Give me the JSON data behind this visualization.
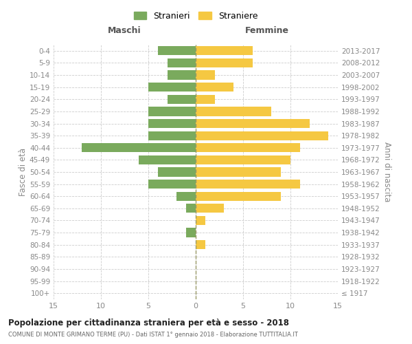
{
  "age_groups": [
    "100+",
    "95-99",
    "90-94",
    "85-89",
    "80-84",
    "75-79",
    "70-74",
    "65-69",
    "60-64",
    "55-59",
    "50-54",
    "45-49",
    "40-44",
    "35-39",
    "30-34",
    "25-29",
    "20-24",
    "15-19",
    "10-14",
    "5-9",
    "0-4"
  ],
  "birth_years": [
    "≤ 1917",
    "1918-1922",
    "1923-1927",
    "1928-1932",
    "1933-1937",
    "1938-1942",
    "1943-1947",
    "1948-1952",
    "1953-1957",
    "1958-1962",
    "1963-1967",
    "1968-1972",
    "1973-1977",
    "1978-1982",
    "1983-1987",
    "1988-1992",
    "1993-1997",
    "1998-2002",
    "2003-2007",
    "2008-2012",
    "2013-2017"
  ],
  "males": [
    0,
    0,
    0,
    0,
    0,
    1,
    0,
    1,
    2,
    5,
    4,
    6,
    12,
    5,
    5,
    5,
    3,
    5,
    3,
    3,
    4
  ],
  "females": [
    0,
    0,
    0,
    0,
    1,
    0,
    1,
    3,
    9,
    11,
    9,
    10,
    11,
    14,
    12,
    8,
    2,
    4,
    2,
    6,
    6
  ],
  "male_color": "#7aaa5d",
  "female_color": "#f5c842",
  "male_label": "Stranieri",
  "female_label": "Straniere",
  "title": "Popolazione per cittadinanza straniera per età e sesso - 2018",
  "subtitle": "COMUNE DI MONTE GRIMANO TERME (PU) - Dati ISTAT 1° gennaio 2018 - Elaborazione TUTTITALIA.IT",
  "header_left": "Maschi",
  "header_right": "Femmine",
  "ylabel_left": "Fasce di età",
  "ylabel_right": "Anni di nascita",
  "xlim": 15,
  "bg_color": "#ffffff",
  "grid_color": "#cccccc",
  "axis_label_color": "#888888",
  "tick_color": "#888888",
  "header_color": "#555555"
}
